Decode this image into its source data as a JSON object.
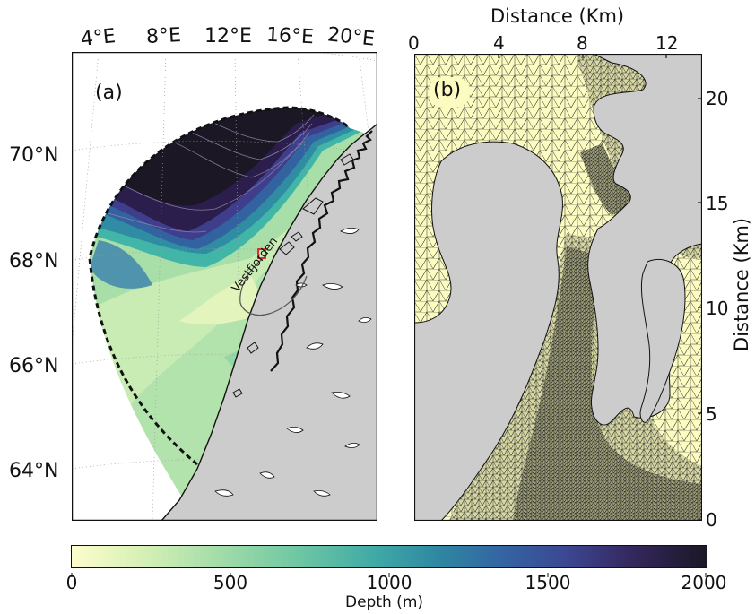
{
  "panel_a": {
    "label": "(a)",
    "lon_labels": [
      "4°E",
      "8°E",
      "12°E",
      "16°E",
      "20°E"
    ],
    "lat_labels": [
      "70°N",
      "68°N",
      "66°N",
      "64°N"
    ],
    "annotation": "Vestfjorden"
  },
  "panel_b": {
    "label": "(b)",
    "top_axis_title": "Distance (Km)",
    "x_ticks": [
      "0",
      "4",
      "8",
      "12"
    ],
    "right_axis_title": "Distance (Km)",
    "y_ticks": [
      "20",
      "15",
      "10",
      "5",
      "0"
    ]
  },
  "colorbar": {
    "title": "Depth (m)",
    "ticks": [
      "0",
      "500",
      "1000",
      "1500",
      "2000"
    ],
    "range": [
      0,
      2000
    ],
    "colors": [
      "#fdfdcc",
      "#c9ecb4",
      "#7ecda2",
      "#41b6a8",
      "#2f8ca3",
      "#3362a1",
      "#3e3e8c",
      "#2b1e4d",
      "#1b1725"
    ]
  }
}
